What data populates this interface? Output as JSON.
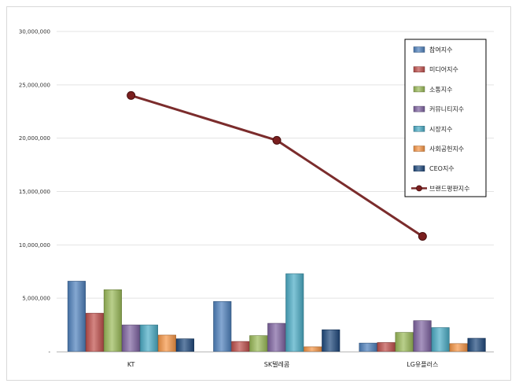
{
  "chart_data": {
    "type": "bar",
    "categories": [
      "KT",
      "SK텔레콤",
      "LG유플러스"
    ],
    "ylim": [
      0,
      30000000
    ],
    "y_ticks": [
      "-",
      "5,000,000",
      "10,000,000",
      "15,000,000",
      "20,000,000",
      "25,000,000",
      "30,000,000"
    ],
    "grid": true,
    "legend_position": "top-right",
    "series": [
      {
        "name": "참여지수",
        "type": "bar",
        "color": "#4f81bd",
        "values": [
          6600000,
          4700000,
          800000
        ]
      },
      {
        "name": "미디어지수",
        "type": "bar",
        "color": "#c0504d",
        "values": [
          3600000,
          950000,
          850000
        ]
      },
      {
        "name": "소통지수",
        "type": "bar",
        "color": "#9bbb59",
        "values": [
          5800000,
          1500000,
          1800000
        ]
      },
      {
        "name": "커뮤니티지수",
        "type": "bar",
        "color": "#8064a2",
        "values": [
          2500000,
          2650000,
          2900000
        ]
      },
      {
        "name": "시장지수",
        "type": "bar",
        "color": "#4bacc6",
        "values": [
          2500000,
          7300000,
          2250000
        ]
      },
      {
        "name": "사회공헌지수",
        "type": "bar",
        "color": "#f79646",
        "values": [
          1550000,
          450000,
          750000
        ]
      },
      {
        "name": "CEO지수",
        "type": "bar",
        "color": "#1f497d",
        "values": [
          1200000,
          2050000,
          1250000
        ]
      },
      {
        "name": "브랜드평판지수",
        "type": "line",
        "color": "#7b2c2c",
        "values": [
          24000000,
          19800000,
          10800000
        ]
      }
    ]
  }
}
